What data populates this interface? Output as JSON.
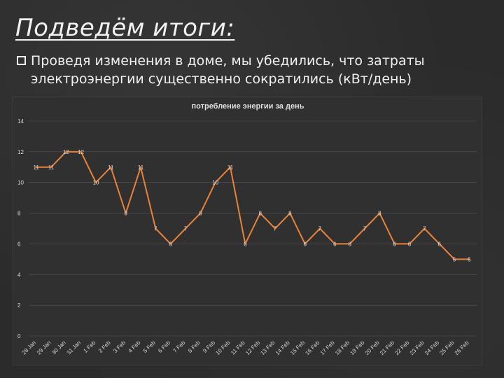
{
  "slide": {
    "title": "Подведём итоги:",
    "bullet": "Проведя изменения в доме, мы убедились, что затраты электроэнергии существенно сократились (кВт/день)"
  },
  "colors": {
    "background": "#2b2b2b",
    "line": "#e8823a",
    "text": "#d9d9d9",
    "grid": "#555555"
  },
  "chart_data": {
    "type": "line",
    "title": "потребление энергии за день",
    "xlabel": "",
    "ylabel": "",
    "ylim": [
      0,
      14
    ],
    "yticks": [
      0,
      2,
      4,
      6,
      8,
      10,
      12,
      14
    ],
    "grid": true,
    "legend": "none",
    "categories": [
      "28 Jan",
      "29 Jan",
      "30 Jan",
      "31 Jan",
      "1 Feb",
      "2 Feb",
      "3 Feb",
      "4 Feb",
      "5 Feb",
      "6 Feb",
      "7 Feb",
      "8 Feb",
      "9 Feb",
      "10 Feb",
      "11 Feb",
      "12 Feb",
      "13 Feb",
      "14 Feb",
      "15 Feb",
      "16 Feb",
      "17 Feb",
      "18 Feb",
      "19 Feb",
      "20 Feb",
      "21 Feb",
      "22 Feb",
      "23 Feb",
      "24 Feb",
      "25 Feb",
      "26 Feb"
    ],
    "series": [
      {
        "values": [
          11,
          11,
          12,
          12,
          10,
          11,
          8,
          11,
          7,
          6,
          7,
          8,
          10,
          11,
          6,
          8,
          7,
          8,
          6,
          7,
          6,
          6,
          7,
          8,
          6,
          6,
          7,
          6,
          5,
          5
        ]
      }
    ]
  }
}
